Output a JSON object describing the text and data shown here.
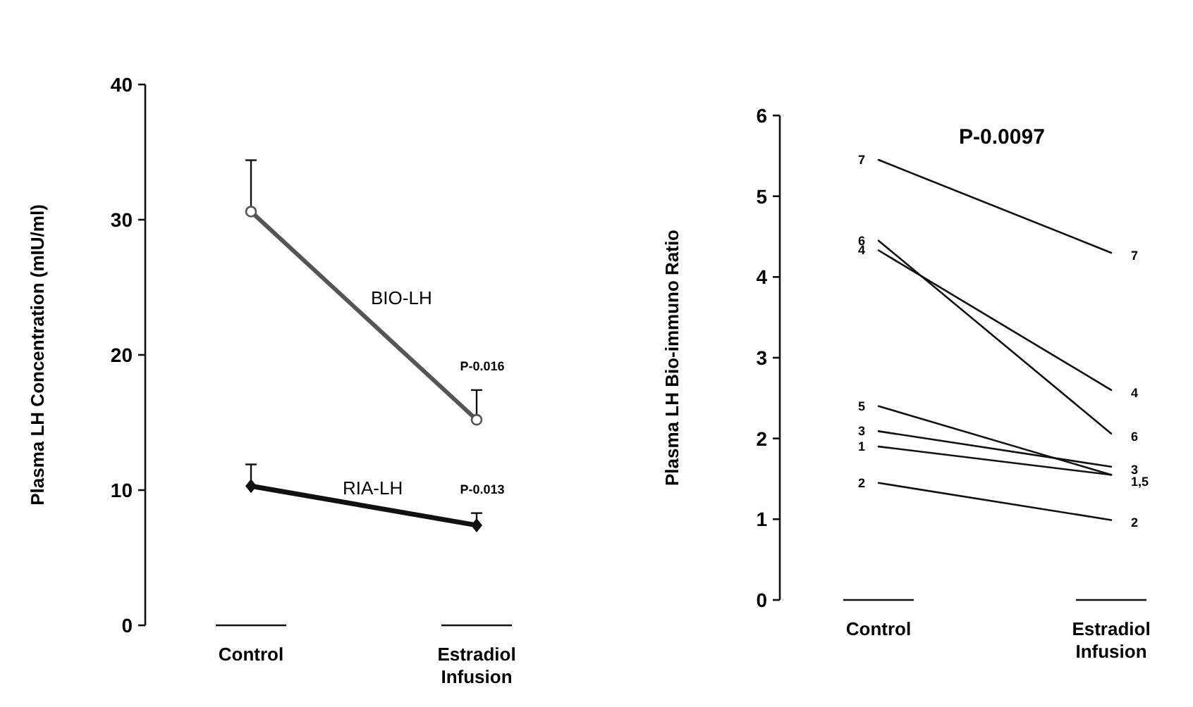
{
  "chart_data": [
    {
      "type": "line",
      "ylabel": "Plasma LH Concentration (mIU/ml)",
      "categories": [
        "Control",
        "Estradiol Infusion"
      ],
      "ylim": [
        0,
        40
      ],
      "yticks": [
        0,
        10,
        20,
        30,
        40
      ],
      "grid": false,
      "legend": false,
      "series": [
        {
          "name": "BIO-LH",
          "color": "#555555",
          "marker": "circle",
          "values": [
            30.6,
            15.2
          ],
          "errors": [
            [
              30.6,
              34.4
            ],
            [
              15.2,
              17.4
            ]
          ]
        },
        {
          "name": "RIA-LH",
          "color": "#111111",
          "marker": "diamond",
          "values": [
            10.3,
            7.4
          ],
          "errors": [
            [
              10.3,
              11.9
            ],
            [
              7.4,
              8.3
            ]
          ]
        }
      ],
      "annotations": [
        "P-0.016",
        "P-0.013"
      ]
    },
    {
      "type": "line",
      "ylabel": "Plasma LH Bio-immuno Ratio",
      "categories": [
        "Control",
        "Estradiol Infusion"
      ],
      "ylim": [
        0,
        6
      ],
      "yticks": [
        0,
        1,
        2,
        3,
        4,
        5,
        6
      ],
      "grid": false,
      "legend": false,
      "marker": "none",
      "series": [
        {
          "name": "1",
          "color": "#111111",
          "values": [
            1.9,
            1.55
          ]
        },
        {
          "name": "2",
          "color": "#111111",
          "values": [
            1.45,
            0.99
          ]
        },
        {
          "name": "3",
          "color": "#111111",
          "values": [
            2.09,
            1.65
          ]
        },
        {
          "name": "4",
          "color": "#111111",
          "values": [
            4.33,
            2.6
          ]
        },
        {
          "name": "5",
          "color": "#111111",
          "values": [
            2.4,
            1.55
          ]
        },
        {
          "name": "6",
          "color": "#111111",
          "values": [
            4.45,
            2.06
          ]
        },
        {
          "name": "7",
          "color": "#111111",
          "values": [
            5.45,
            4.3
          ]
        }
      ],
      "annotations": [
        "P-0.0097",
        {
          "text": "7",
          "x": "Estradiol Infusion",
          "y": 4.3
        },
        {
          "text": "4",
          "x": "Estradiol Infusion",
          "y": 2.6
        },
        {
          "text": "6",
          "x": "Estradiol Infusion",
          "y": 2.06
        },
        {
          "text": "3",
          "x": "Estradiol Infusion",
          "y": 1.65
        },
        {
          "text": "1,5",
          "x": "Estradiol Infusion",
          "y": 1.5
        },
        {
          "text": "2",
          "x": "Estradiol Infusion",
          "y": 0.99
        }
      ]
    }
  ]
}
